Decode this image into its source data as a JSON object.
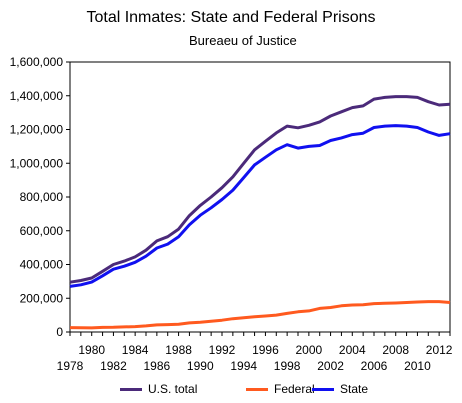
{
  "chart_data": {
    "type": "line",
    "title": "Total Inmates: State and Federal Prisons",
    "subtitle": "Bureaeu of Justice",
    "xlabel": "",
    "ylabel": "",
    "xlim": [
      1978,
      2013
    ],
    "ylim": [
      0,
      1600000
    ],
    "grid": false,
    "legend_position": "bottom",
    "y_ticks": [
      0,
      200000,
      400000,
      600000,
      800000,
      1000000,
      1200000,
      1400000,
      1600000
    ],
    "y_tick_labels": [
      "0",
      "200,000",
      "400,000",
      "600,000",
      "800,000",
      "1,000,000",
      "1,200,000",
      "1,400,000",
      "1,600,000"
    ],
    "x_ticks_upper": [
      1980,
      1984,
      1988,
      1992,
      1996,
      2000,
      2004,
      2008,
      2012
    ],
    "x_ticks_lower": [
      1978,
      1982,
      1986,
      1990,
      1994,
      1998,
      2002,
      2006,
      2010
    ],
    "x": [
      1978,
      1979,
      1980,
      1981,
      1982,
      1983,
      1984,
      1985,
      1986,
      1987,
      1988,
      1989,
      1990,
      1991,
      1992,
      1993,
      1994,
      1995,
      1996,
      1997,
      1998,
      1999,
      2000,
      2001,
      2002,
      2003,
      2004,
      2005,
      2006,
      2007,
      2008,
      2009,
      2010,
      2011,
      2012,
      2013
    ],
    "series": [
      {
        "name": "U.S. total",
        "color": "#4B2A7A",
        "values": [
          295000,
          305000,
          320000,
          360000,
          400000,
          420000,
          445000,
          485000,
          540000,
          565000,
          610000,
          690000,
          750000,
          800000,
          855000,
          920000,
          1000000,
          1080000,
          1130000,
          1180000,
          1220000,
          1210000,
          1225000,
          1245000,
          1280000,
          1305000,
          1330000,
          1340000,
          1380000,
          1390000,
          1395000,
          1395000,
          1390000,
          1365000,
          1345000,
          1350000
        ]
      },
      {
        "name": "Federal",
        "color": "#FF5A1F",
        "values": [
          26000,
          25000,
          24000,
          27000,
          28000,
          30000,
          32000,
          36000,
          42000,
          44000,
          46000,
          54000,
          58000,
          64000,
          70000,
          79000,
          85000,
          90000,
          95000,
          100000,
          110000,
          120000,
          125000,
          140000,
          145000,
          155000,
          160000,
          162000,
          168000,
          170000,
          172000,
          175000,
          178000,
          180000,
          180000,
          175000
        ]
      },
      {
        "name": "State",
        "color": "#1010F0",
        "values": [
          270000,
          280000,
          296000,
          333000,
          372000,
          390000,
          413000,
          449000,
          498000,
          521000,
          564000,
          636000,
          692000,
          736000,
          785000,
          841000,
          915000,
          990000,
          1035000,
          1080000,
          1110000,
          1090000,
          1100000,
          1105000,
          1135000,
          1150000,
          1170000,
          1178000,
          1212000,
          1220000,
          1223000,
          1220000,
          1212000,
          1185000,
          1165000,
          1175000
        ]
      }
    ]
  }
}
